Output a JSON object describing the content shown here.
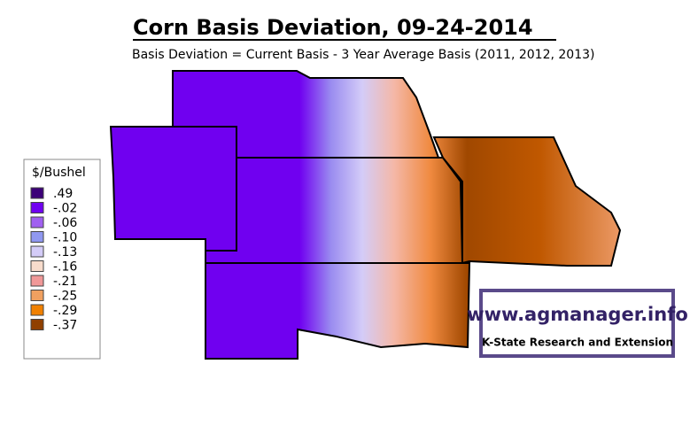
{
  "header": {
    "title": "Corn Basis Deviation, 09-24-2014",
    "subtitle": "Basis Deviation = Current Basis - 3 Year Average Basis (2011, 2012, 2013)"
  },
  "legend": {
    "title": "$/Bushel",
    "items": [
      {
        "label": ".49",
        "color": "#3c0078"
      },
      {
        "label": "-.02",
        "color": "#7000f0"
      },
      {
        "label": "-.06",
        "color": "#a060f0"
      },
      {
        "label": "-.10",
        "color": "#9098f0"
      },
      {
        "label": "-.13",
        "color": "#d4ccf8"
      },
      {
        "label": "-.16",
        "color": "#f8dccc"
      },
      {
        "label": "-.21",
        "color": "#f09898"
      },
      {
        "label": "-.25",
        "color": "#f0a060"
      },
      {
        "label": "-.29",
        "color": "#f08000"
      },
      {
        "label": "-.37",
        "color": "#904000"
      }
    ]
  },
  "logo": {
    "url": "www.agmanager.info",
    "org": "K-State Research and Extension"
  }
}
